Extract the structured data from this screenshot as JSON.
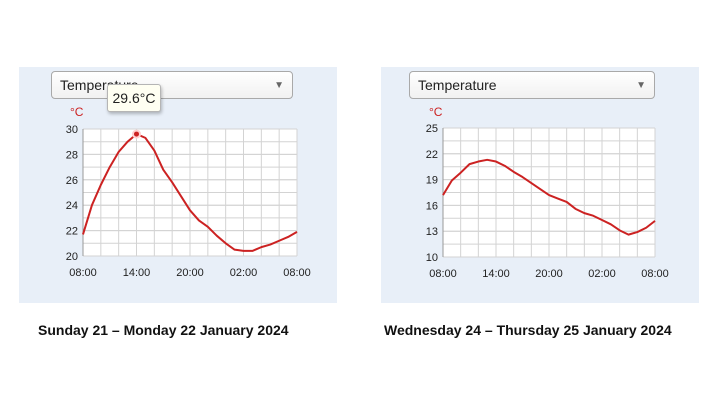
{
  "panels": [
    {
      "dropdown_value": "Temperature",
      "unit": "°C",
      "tooltip": "29.6°C",
      "caption": "Sunday 21 – Monday 22 January 2024"
    },
    {
      "dropdown_value": "Temperature",
      "unit": "°C",
      "caption": "Wednesday 24 – Thursday 25 January 2024"
    }
  ],
  "colors": {
    "line": "#cc2222",
    "grid": "#d3d3d3",
    "background": "#e8eff8"
  },
  "chart_data": [
    {
      "type": "line",
      "title": "",
      "xlabel": "",
      "ylabel": "°C",
      "x": [
        0,
        1,
        2,
        3,
        4,
        5,
        6,
        7,
        8,
        9,
        10,
        11,
        12,
        13,
        14,
        15,
        16,
        17,
        18,
        19,
        20,
        21,
        22,
        23,
        24
      ],
      "xticks": [
        "08:00",
        "14:00",
        "20:00",
        "02:00",
        "08:00"
      ],
      "xtick_positions": [
        0,
        6,
        12,
        18,
        24
      ],
      "yticks": [
        20,
        22,
        24,
        26,
        28,
        30
      ],
      "ylim": [
        20,
        30
      ],
      "xlim": [
        0,
        24
      ],
      "grid": true,
      "series": [
        {
          "values": [
            21.7,
            24.0,
            25.6,
            27.0,
            28.2,
            29.0,
            29.6,
            29.3,
            28.3,
            26.8,
            25.8,
            24.7,
            23.6,
            22.8,
            22.3,
            21.6,
            21.0,
            20.5,
            20.4,
            20.4,
            20.7,
            20.9,
            21.2,
            21.5,
            21.9
          ]
        }
      ],
      "highlight_point": {
        "x": 6,
        "y": 29.6
      }
    },
    {
      "type": "line",
      "title": "",
      "xlabel": "",
      "ylabel": "°C",
      "x": [
        0,
        1,
        2,
        3,
        4,
        5,
        6,
        7,
        8,
        9,
        10,
        11,
        12,
        13,
        14,
        15,
        16,
        17,
        18,
        19,
        20,
        21,
        22,
        23,
        24
      ],
      "xticks": [
        "08:00",
        "14:00",
        "20:00",
        "02:00",
        "08:00"
      ],
      "xtick_positions": [
        0,
        6,
        12,
        18,
        24
      ],
      "yticks": [
        10,
        13,
        16,
        19,
        22,
        25
      ],
      "ylim": [
        10,
        25
      ],
      "xlim": [
        0,
        24
      ],
      "grid": true,
      "series": [
        {
          "values": [
            17.2,
            18.9,
            19.8,
            20.8,
            21.1,
            21.3,
            21.1,
            20.6,
            19.9,
            19.3,
            18.6,
            17.9,
            17.2,
            16.8,
            16.4,
            15.6,
            15.1,
            14.8,
            14.3,
            13.8,
            13.1,
            12.6,
            12.9,
            13.4,
            14.2
          ]
        }
      ]
    }
  ]
}
